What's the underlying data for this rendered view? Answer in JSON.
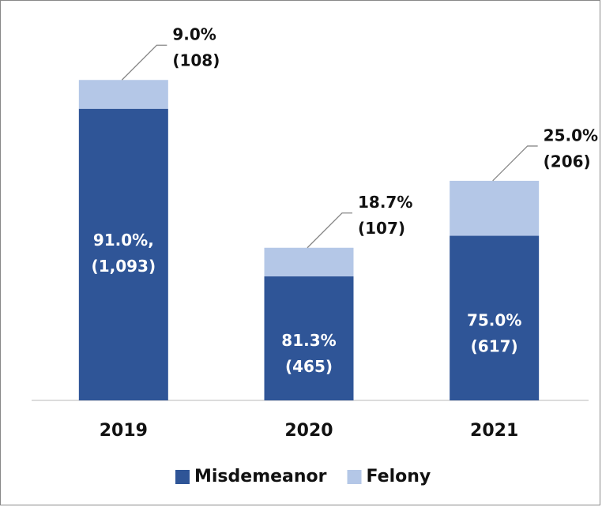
{
  "chart_data": {
    "type": "stacked_bar",
    "categories": [
      "2019",
      "2020",
      "2021"
    ],
    "series": [
      {
        "name": "Misdemeanor",
        "color": "#2f5597",
        "values": [
          1093,
          465,
          617
        ],
        "value_labels": [
          "91.0%,\n(1,093)",
          "81.3%\n(465)",
          "75.0%\n(617)"
        ]
      },
      {
        "name": "Felony",
        "color": "#b4c7e7",
        "values": [
          108,
          107,
          206
        ],
        "value_labels": [
          "9.0%\n(108)",
          "18.7%\n(107)",
          "25.0%\n(206)"
        ]
      }
    ],
    "ylim": [
      0,
      1400
    ],
    "legend": "bottom"
  }
}
